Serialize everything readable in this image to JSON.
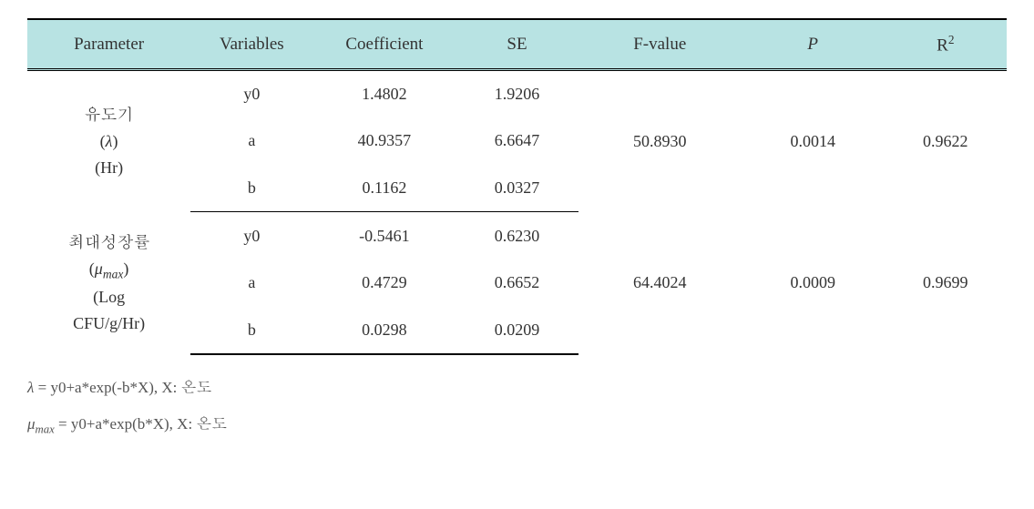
{
  "table": {
    "headers": {
      "parameter": "Parameter",
      "variables": "Variables",
      "coefficient": "Coefficient",
      "se": "SE",
      "fvalue": "F-value",
      "p": "P",
      "r2": "R",
      "r2_sup": "2"
    },
    "groups": [
      {
        "param_lines": {
          "l1": "유도기",
          "l2_prefix": "(",
          "l2_symbol": "λ",
          "l2_suffix": ")",
          "l3": "(Hr)"
        },
        "fvalue": "50.8930",
        "p": "0.0014",
        "r2": "0.9622",
        "rows": [
          {
            "variable": "y0",
            "coefficient": "1.4802",
            "se": "1.9206"
          },
          {
            "variable": "a",
            "coefficient": "40.9357",
            "se": "6.6647"
          },
          {
            "variable": "b",
            "coefficient": "0.1162",
            "se": "0.0327"
          }
        ]
      },
      {
        "param_lines": {
          "l1": "최대성장률",
          "l2_prefix": "(",
          "l2_symbol": "μ",
          "l2_sub": "max",
          "l2_suffix": ")",
          "l3": "(Log",
          "l4": "CFU/g/Hr)"
        },
        "fvalue": "64.4024",
        "p": "0.0009",
        "r2": "0.9699",
        "rows": [
          {
            "variable": "y0",
            "coefficient": "-0.5461",
            "se": "0.6230"
          },
          {
            "variable": "a",
            "coefficient": "0.4729",
            "se": "0.6652"
          },
          {
            "variable": "b",
            "coefficient": "0.0298",
            "se": "0.0209"
          }
        ]
      }
    ]
  },
  "footnotes": {
    "f1_symbol": "λ",
    "f1_text": " = y0+a*exp(-b*X), X: 온도",
    "f2_symbol": "μ",
    "f2_sub": "max",
    "f2_text": " = y0+a*exp(b*X), X: 온도"
  },
  "style": {
    "header_bg": "#b8e3e3",
    "text_color": "#333333",
    "footnote_color": "#555555",
    "border_top": "#000000"
  }
}
